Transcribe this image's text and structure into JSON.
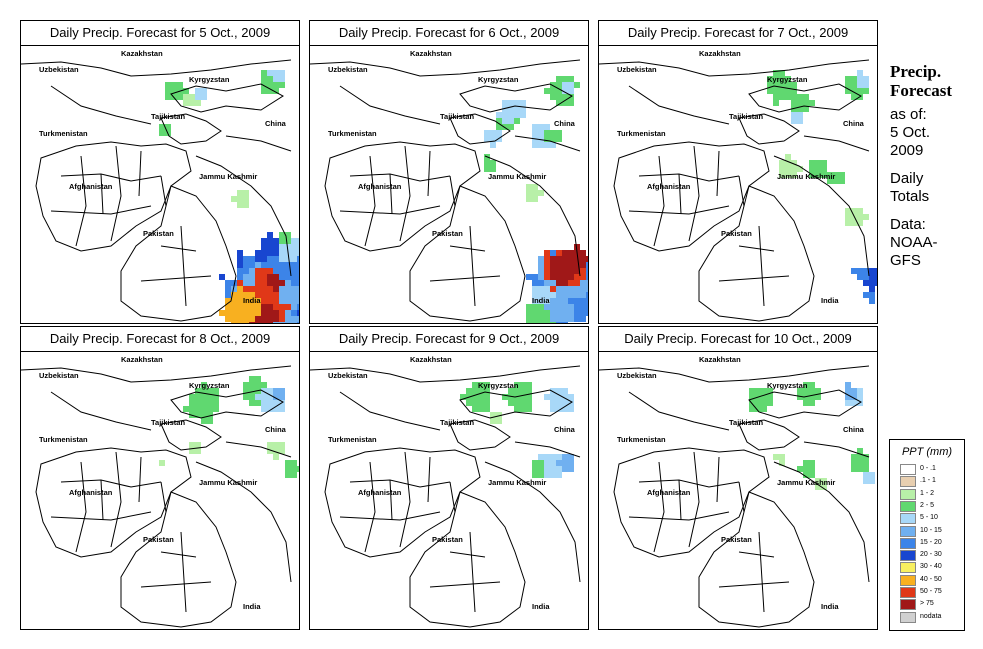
{
  "panels": [
    {
      "title": "Daily Precip. Forecast for  5 Oct., 2009"
    },
    {
      "title": "Daily Precip. Forecast for  6 Oct., 2009"
    },
    {
      "title": "Daily Precip. Forecast for  7 Oct., 2009"
    },
    {
      "title": "Daily Precip. Forecast for  8 Oct., 2009"
    },
    {
      "title": "Daily Precip. Forecast for  9 Oct., 2009"
    },
    {
      "title": "Daily Precip. Forecast for  10 Oct., 2009"
    }
  ],
  "map_labels": {
    "kazakhstan": "Kazakhstan",
    "uzbekistan": "Uzbekistan",
    "kyrgyzstan": "Kyrgyzstan",
    "tajikistan": "Tajikistan",
    "china": "China",
    "turkmenistan": "Turkmenistan",
    "jammu_kashmir": "Jammu Kashmir",
    "afghanistan": "Afghanistan",
    "pakistan": "Pakistan",
    "india": "India"
  },
  "sidebar": {
    "heading_1": "Precip.",
    "heading_2": "Forecast",
    "as_of": "as of:",
    "date_1": "5 Oct.",
    "date_2": "2009",
    "daily_1": "Daily",
    "daily_2": "Totals",
    "data_label": "Data:",
    "source_1": "NOAA-",
    "source_2": "GFS"
  },
  "legend": {
    "title": "PPT (mm)",
    "items": [
      {
        "label": "0 - .1",
        "color": "#ffffff"
      },
      {
        "label": ".1 - 1",
        "color": "#e8cfb0"
      },
      {
        "label": "1 - 2",
        "color": "#b8f0a8"
      },
      {
        "label": "2 - 5",
        "color": "#60d870"
      },
      {
        "label": "5 - 10",
        "color": "#a8d8f8"
      },
      {
        "label": "10 - 15",
        "color": "#70b0f0"
      },
      {
        "label": "15 - 20",
        "color": "#3c84e8"
      },
      {
        "label": "20 - 30",
        "color": "#1846d0"
      },
      {
        "label": "30 - 40",
        "color": "#f8f060"
      },
      {
        "label": "40 - 50",
        "color": "#f8b020"
      },
      {
        "label": "50 - 75",
        "color": "#e03818"
      },
      {
        "label": "> 75",
        "color": "#a01818"
      },
      {
        "label": "nodata",
        "color": "#d0d0d0"
      }
    ]
  }
}
